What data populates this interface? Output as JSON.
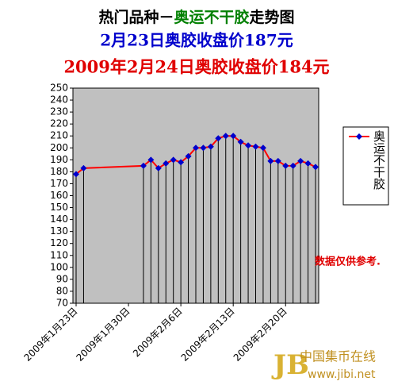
{
  "chart_data": {
    "type": "line",
    "title_parts": [
      {
        "text": "热门品种－",
        "color": "#000000"
      },
      {
        "text": "奥运不干胶",
        "color": "#008000"
      },
      {
        "text": "走势图",
        "color": "#000000"
      }
    ],
    "subtitle": "2月23日奥胶收盘价187元",
    "subtitle_color": "#0000cc",
    "subtitle2": "2009年2月24日奥胶收盘价184元",
    "subtitle2_color": "#e00000",
    "x": [
      "2009-01-23",
      "2009-01-24",
      "2009-02-01",
      "2009-02-02",
      "2009-02-03",
      "2009-02-04",
      "2009-02-05",
      "2009-02-06",
      "2009-02-07",
      "2009-02-08",
      "2009-02-09",
      "2009-02-10",
      "2009-02-11",
      "2009-02-12",
      "2009-02-13",
      "2009-02-14",
      "2009-02-15",
      "2009-02-16",
      "2009-02-17",
      "2009-02-18",
      "2009-02-19",
      "2009-02-20",
      "2009-02-21",
      "2009-02-22",
      "2009-02-23",
      "2009-02-24"
    ],
    "series": [
      {
        "name": "奥运不干胶",
        "color": "#ff0000",
        "marker_color": "#0000cc",
        "values": [
          178,
          183,
          185,
          190,
          183,
          187,
          190,
          188,
          193,
          200,
          200,
          201,
          208,
          210,
          210,
          205,
          202,
          201,
          200,
          189,
          189,
          185,
          185,
          189,
          187,
          184
        ]
      }
    ],
    "xlim": [
      "2009-01-23",
      "2009-02-24"
    ],
    "xticks": [
      {
        "value": "2009-01-23",
        "label": "2009年1月23日"
      },
      {
        "value": "2009-01-30",
        "label": "2009年1月30日"
      },
      {
        "value": "2009-02-06",
        "label": "2009年2月6日"
      },
      {
        "value": "2009-02-13",
        "label": "2009年2月13日"
      },
      {
        "value": "2009-02-20",
        "label": "2009年2月20日"
      }
    ],
    "ylim": [
      70,
      250
    ],
    "yticks": [
      70,
      80,
      90,
      100,
      110,
      120,
      130,
      140,
      150,
      160,
      170,
      180,
      190,
      200,
      210,
      220,
      230,
      240,
      250
    ],
    "plot_background": "#c0c0c0",
    "drop_lines": true,
    "legend": "right",
    "annotation": "数据仅供参考.",
    "watermark": "中国集币在线",
    "watermark_url": "www.jibi.net"
  }
}
